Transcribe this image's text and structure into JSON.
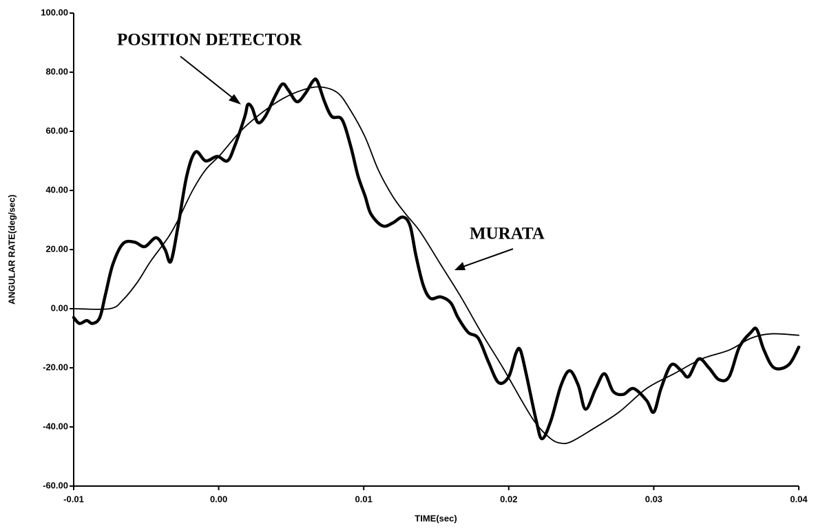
{
  "chart_data": {
    "type": "line",
    "xlabel": "TIME(sec)",
    "ylabel": "ANGULAR RATE(deg/sec)",
    "xlim": [
      -0.01,
      0.04
    ],
    "xticks": [
      -0.01,
      {
        "value": 0,
        "label": "0.00"
      },
      0.01,
      0.02,
      0.03,
      0.04
    ],
    "ylim": [
      -60,
      100
    ],
    "yticks": [
      {
        "value": -60,
        "label": "-60.00"
      },
      {
        "value": -40,
        "label": "-40.00"
      },
      {
        "value": -20,
        "label": "-20.00"
      },
      {
        "value": 0,
        "label": "0.00"
      },
      {
        "value": 20,
        "label": "20.00"
      },
      {
        "value": 40,
        "label": "40.00"
      },
      {
        "value": 60,
        "label": "60.00"
      },
      {
        "value": 80,
        "label": "80.00"
      },
      {
        "value": 100,
        "label": "100.00"
      }
    ],
    "grid": false,
    "series": [
      {
        "name": "POSITION DETECTOR",
        "color": "#000000",
        "x": [
          -0.01,
          -0.0096,
          -0.0091,
          -0.0087,
          -0.0082,
          -0.0078,
          -0.0073,
          -0.0066,
          -0.0058,
          -0.0051,
          -0.0043,
          -0.0037,
          -0.0033,
          -0.0028,
          -0.0022,
          -0.0016,
          -0.0009,
          -0.0001,
          0.0006,
          0.0011,
          0.0018,
          0.002,
          0.0023,
          0.0027,
          0.0032,
          0.0039,
          0.0044,
          0.0048,
          0.0054,
          0.006,
          0.0065,
          0.0068,
          0.0073,
          0.0078,
          0.0085,
          0.0091,
          0.0096,
          0.0101,
          0.0105,
          0.0113,
          0.012,
          0.0127,
          0.0132,
          0.0136,
          0.0141,
          0.0146,
          0.0153,
          0.016,
          0.0165,
          0.0172,
          0.0179,
          0.0186,
          0.0193,
          0.02,
          0.0205,
          0.0208,
          0.0212,
          0.0219,
          0.0223,
          0.0229,
          0.0236,
          0.0242,
          0.0248,
          0.0253,
          0.026,
          0.0266,
          0.0272,
          0.0279,
          0.0286,
          0.0295,
          0.03,
          0.0305,
          0.0312,
          0.0319,
          0.0324,
          0.0331,
          0.0338,
          0.0345,
          0.0352,
          0.0359,
          0.0367,
          0.0371,
          0.0376,
          0.0383,
          0.0393,
          0.04
        ],
        "values": [
          -3,
          -5,
          -4,
          -5,
          -3,
          5,
          15,
          22,
          22.5,
          21,
          24,
          20,
          16,
          28,
          45,
          53,
          50,
          51.5,
          50,
          55,
          65,
          69,
          68,
          63,
          65,
          72,
          76,
          74,
          70,
          73,
          77,
          77,
          70,
          65,
          64,
          55,
          45,
          38,
          32,
          28,
          29,
          31,
          28,
          18,
          8,
          3.5,
          4,
          2,
          -3,
          -8,
          -10,
          -18,
          -25,
          -23,
          -15,
          -14,
          -22,
          -38,
          -44,
          -38,
          -26,
          -21,
          -26,
          -34,
          -27,
          -22,
          -28,
          -29,
          -27,
          -31,
          -35,
          -27,
          -19,
          -21,
          -23,
          -17,
          -20,
          -24,
          -23,
          -13,
          -8,
          -7,
          -14,
          -20,
          -19,
          -13
        ]
      },
      {
        "name": "MURATA",
        "color": "#000000",
        "x": [
          -0.01,
          -0.0075,
          -0.0066,
          -0.0056,
          -0.0047,
          -0.0035,
          -0.0028,
          -0.0018,
          -0.0009,
          0.0001,
          0.0015,
          0.0029,
          0.0044,
          0.0058,
          0.007,
          0.0082,
          0.0091,
          0.0101,
          0.011,
          0.012,
          0.0129,
          0.0139,
          0.0153,
          0.0167,
          0.0181,
          0.0196,
          0.021,
          0.0219,
          0.0229,
          0.0236,
          0.0243,
          0.0257,
          0.0276,
          0.0295,
          0.0314,
          0.0333,
          0.0352,
          0.0367,
          0.0381,
          0.04
        ],
        "values": [
          0,
          0,
          3,
          9,
          16,
          24,
          30,
          40,
          47,
          52,
          60,
          66,
          71,
          74,
          75,
          73,
          67,
          58,
          47,
          38,
          32,
          26,
          15,
          4,
          -8,
          -20,
          -32,
          -39,
          -44,
          -45.5,
          -45,
          -41,
          -35,
          -27,
          -22,
          -17,
          -14,
          -10,
          -8.5,
          -9
        ]
      }
    ]
  }
}
